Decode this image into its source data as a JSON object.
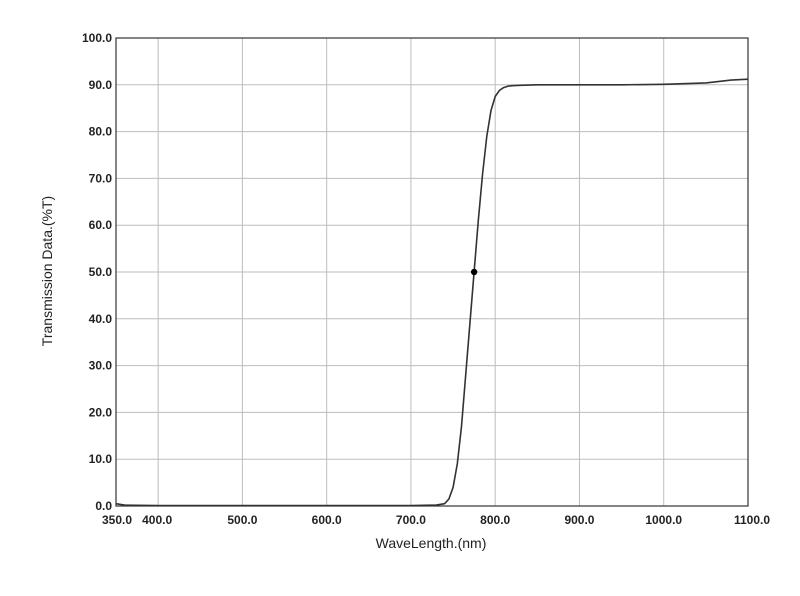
{
  "chart_data": {
    "type": "line",
    "title": "",
    "xlabel": "WaveLength.(nm)",
    "ylabel": "Transmission Data.(%T)",
    "xlim": [
      350,
      1100
    ],
    "ylim": [
      0,
      100
    ],
    "grid": true,
    "x_ticks": [
      350,
      400,
      500,
      600,
      700,
      800,
      900,
      1000,
      1100
    ],
    "x_tick_labels": [
      "350.0",
      "400.0",
      "500.0",
      "600.0",
      "700.0",
      "800.0",
      "900.0",
      "1000.0",
      "1100.0"
    ],
    "y_ticks": [
      0,
      10,
      20,
      30,
      40,
      50,
      60,
      70,
      80,
      90,
      100
    ],
    "y_tick_labels": [
      "0.0",
      "10.0",
      "20.0",
      "30.0",
      "40.0",
      "50.0",
      "60.0",
      "70.0",
      "80.0",
      "90.0",
      "100.0"
    ],
    "series": [
      {
        "x": [
          350,
          360,
          400,
          500,
          600,
          700,
          730,
          740,
          745,
          750,
          755,
          760,
          765,
          770,
          775,
          780,
          785,
          790,
          795,
          800,
          805,
          810,
          815,
          820,
          830,
          850,
          900,
          950,
          1000,
          1050,
          1080,
          1100
        ],
        "y": [
          0.5,
          0.2,
          0.1,
          0.1,
          0.1,
          0.1,
          0.2,
          0.5,
          1.5,
          4.0,
          9.0,
          17.0,
          28.0,
          39.0,
          50.0,
          61.0,
          71.0,
          79.0,
          84.5,
          87.5,
          88.8,
          89.4,
          89.7,
          89.8,
          89.9,
          90.0,
          90.0,
          90.0,
          90.1,
          90.4,
          91.0,
          91.2
        ]
      }
    ],
    "marker": {
      "x": 775,
      "y": 50
    }
  },
  "colors": {
    "line": "#333333",
    "grid": "#bdbdbd",
    "frame": "#333333",
    "marker": "#000000"
  }
}
